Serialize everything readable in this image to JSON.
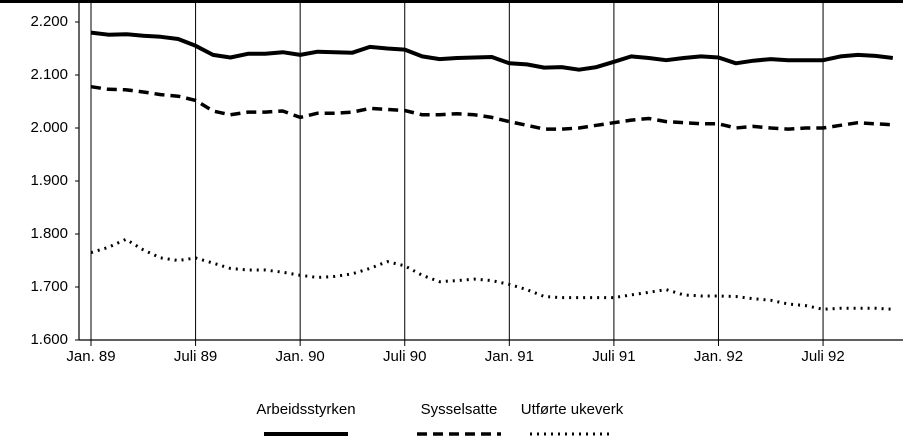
{
  "chart_data": {
    "type": "line",
    "categories": [
      "Jan. 89",
      null,
      null,
      null,
      null,
      null,
      "Juli 89",
      null,
      null,
      null,
      null,
      null,
      "Jan. 90",
      null,
      null,
      null,
      null,
      null,
      "Juli 90",
      null,
      null,
      null,
      null,
      null,
      "Jan. 91",
      null,
      null,
      null,
      null,
      null,
      "Juli 91",
      null,
      null,
      null,
      null,
      null,
      "Jan. 92",
      null,
      null,
      null,
      null,
      null,
      "Juli 92",
      null,
      null,
      null,
      null
    ],
    "series": [
      {
        "name": "Arbeidsstyrken",
        "color": "#000000",
        "style": "solid",
        "values": [
          2180,
          2176,
          2177,
          2174,
          2172,
          2168,
          2155,
          2138,
          2133,
          2140,
          2140,
          2143,
          2138,
          2144,
          2143,
          2142,
          2153,
          2150,
          2148,
          2135,
          2130,
          2132,
          2133,
          2134,
          2122,
          2120,
          2114,
          2115,
          2110,
          2115,
          2125,
          2135,
          2132,
          2128,
          2132,
          2135,
          2133,
          2122,
          2127,
          2130,
          2128,
          2128,
          2128,
          2135,
          2138,
          2136,
          2132
        ]
      },
      {
        "name": "Sysselsatte",
        "color": "#000000",
        "style": "dashed",
        "values": [
          2078,
          2073,
          2072,
          2068,
          2063,
          2060,
          2052,
          2032,
          2025,
          2030,
          2030,
          2032,
          2020,
          2028,
          2028,
          2030,
          2037,
          2035,
          2033,
          2025,
          2025,
          2027,
          2025,
          2020,
          2012,
          2005,
          1998,
          1998,
          2000,
          2005,
          2010,
          2015,
          2018,
          2012,
          2010,
          2008,
          2008,
          2000,
          2003,
          2000,
          1998,
          2000,
          2000,
          2005,
          2010,
          2008,
          2006
        ]
      },
      {
        "name": "Utførte ukeverk",
        "color": "#000000",
        "style": "dotted",
        "values": [
          1765,
          1775,
          1790,
          1770,
          1755,
          1750,
          1755,
          1745,
          1735,
          1732,
          1732,
          1728,
          1722,
          1718,
          1720,
          1725,
          1735,
          1748,
          1740,
          1722,
          1710,
          1712,
          1715,
          1712,
          1705,
          1695,
          1682,
          1680,
          1680,
          1680,
          1680,
          1685,
          1690,
          1695,
          1685,
          1683,
          1683,
          1682,
          1678,
          1675,
          1668,
          1665,
          1658,
          1660,
          1660,
          1660,
          1658
        ]
      }
    ],
    "ylim": [
      1600,
      2200
    ],
    "yticks": [
      {
        "value": 1600,
        "label": "1.600"
      },
      {
        "value": 1700,
        "label": "1.700"
      },
      {
        "value": 1800,
        "label": "1.800"
      },
      {
        "value": 1900,
        "label": "1.900"
      },
      {
        "value": 2000,
        "label": "2.000"
      },
      {
        "value": 2100,
        "label": "2.100"
      },
      {
        "value": 2200,
        "label": "2.200"
      }
    ],
    "legend": "bottom"
  }
}
